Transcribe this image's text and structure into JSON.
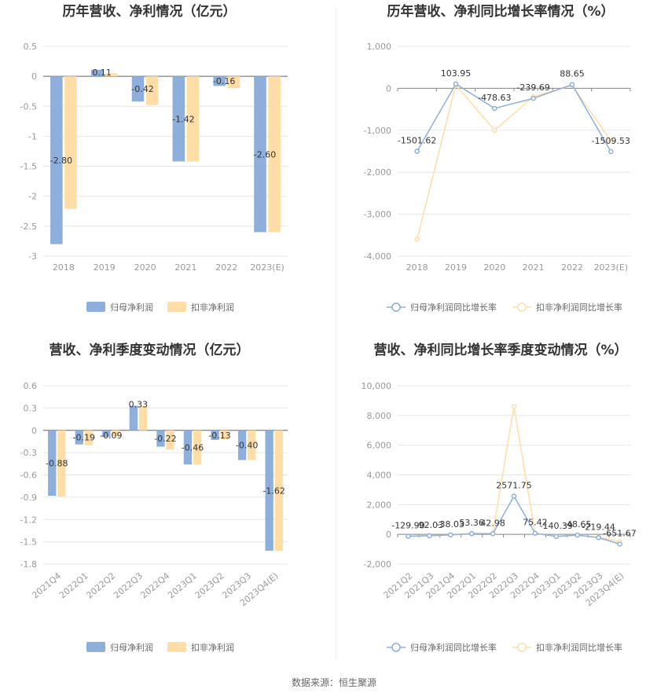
{
  "colors": {
    "blue": "#8eaedb",
    "orange": "#ffdda6",
    "blue_line": "#8eaedb",
    "orange_line": "#ffdda6"
  },
  "footer": "数据来源：恒生聚源",
  "chart_data": [
    {
      "id": "annual-profit",
      "type": "bar",
      "title": "历年营收、净利情况（亿元）",
      "categories": [
        "2018",
        "2019",
        "2020",
        "2021",
        "2022",
        "2023(E)"
      ],
      "series": [
        {
          "name": "归母净利润",
          "values": [
            -2.8,
            0.11,
            -0.42,
            -1.42,
            -0.16,
            -2.6
          ],
          "labels": [
            "-2.80",
            "0.11",
            "-0.42",
            "-1.42",
            "-0.16",
            "-2.60"
          ]
        },
        {
          "name": "扣非净利润",
          "values": [
            -2.21,
            0.05,
            -0.48,
            -1.42,
            -0.2,
            -2.6
          ]
        }
      ],
      "yticks": [
        "0.5",
        "0",
        "-0.5",
        "-1",
        "-1.5",
        "-2",
        "-2.5",
        "-3"
      ],
      "ylim": [
        -3,
        0.5
      ]
    },
    {
      "id": "annual-growth",
      "type": "line",
      "title": "历年营收、净利同比增长率情况（%）",
      "categories": [
        "2018",
        "2019",
        "2020",
        "2021",
        "2022",
        "2023(E)"
      ],
      "series": [
        {
          "name": "归母净利润同比增长率",
          "values": [
            -1501.62,
            103.95,
            -478.63,
            -239.69,
            88.65,
            -1509.53
          ],
          "labels": [
            "-1501.62",
            "103.95",
            "-478.63",
            "-239.69",
            "88.65",
            "-1509.53"
          ]
        },
        {
          "name": "扣非净利润同比增长率",
          "values": [
            -3600,
            80,
            -1000,
            -200,
            70,
            -1250
          ]
        }
      ],
      "yticks": [
        "1,000",
        "0",
        "-1,000",
        "-2,000",
        "-3,000",
        "-4,000"
      ],
      "ylim": [
        -4000,
        1000
      ]
    },
    {
      "id": "quarterly-profit",
      "type": "bar",
      "title": "营收、净利季度变动情况（亿元）",
      "categories": [
        "2021Q4",
        "2022Q1",
        "2022Q2",
        "2022Q3",
        "2022Q4",
        "2023Q1",
        "2023Q2",
        "2023Q3",
        "2023Q4(E)"
      ],
      "series": [
        {
          "name": "归母净利润",
          "values": [
            -0.88,
            -0.19,
            -0.09,
            0.33,
            -0.22,
            -0.46,
            -0.13,
            -0.4,
            -1.62
          ],
          "labels": [
            "-0.88",
            "-0.19",
            "-0.09",
            "0.33",
            "-0.22",
            "-0.46",
            "-0.13",
            "-0.40",
            "-1.62"
          ]
        },
        {
          "name": "扣非净利润",
          "values": [
            -0.89,
            -0.2,
            -0.08,
            0.33,
            -0.26,
            -0.46,
            -0.12,
            -0.4,
            -1.62
          ]
        }
      ],
      "yticks": [
        "0.6",
        "0.3",
        "0",
        "-0.3",
        "-0.6",
        "-0.9",
        "-1.2",
        "-1.5",
        "-1.8"
      ],
      "ylim": [
        -1.8,
        0.6
      ]
    },
    {
      "id": "quarterly-growth",
      "type": "line",
      "title": "营收、净利同比增长率季度变动情况（%）",
      "categories": [
        "2021Q2",
        "2021Q3",
        "2021Q4",
        "2022Q1",
        "2022Q2",
        "2022Q3",
        "2022Q4",
        "2023Q1",
        "2023Q2",
        "2023Q3",
        "2023Q4(E)"
      ],
      "series": [
        {
          "name": "归母净利润同比增长率",
          "values": [
            -129.9,
            -92.03,
            -38.03,
            53.36,
            42.98,
            2571.75,
            75.42,
            -140.39,
            -48.65,
            -219.44,
            -651.67
          ],
          "labels": [
            "-129.90",
            "-92.03",
            "-38.03",
            "53.36",
            "42.98",
            "2571.75",
            "75.42",
            "-140.39",
            "-48.65",
            "-219.44",
            "-651.67"
          ]
        },
        {
          "name": "扣非净利润同比增长率",
          "values": [
            -120,
            -80,
            -40,
            40,
            60,
            8600,
            60,
            -120,
            -60,
            -200,
            -480
          ]
        }
      ],
      "yticks": [
        "10,000",
        "8,000",
        "6,000",
        "4,000",
        "2,000",
        "0",
        "-2,000"
      ],
      "ylim": [
        -2000,
        10000
      ]
    }
  ]
}
